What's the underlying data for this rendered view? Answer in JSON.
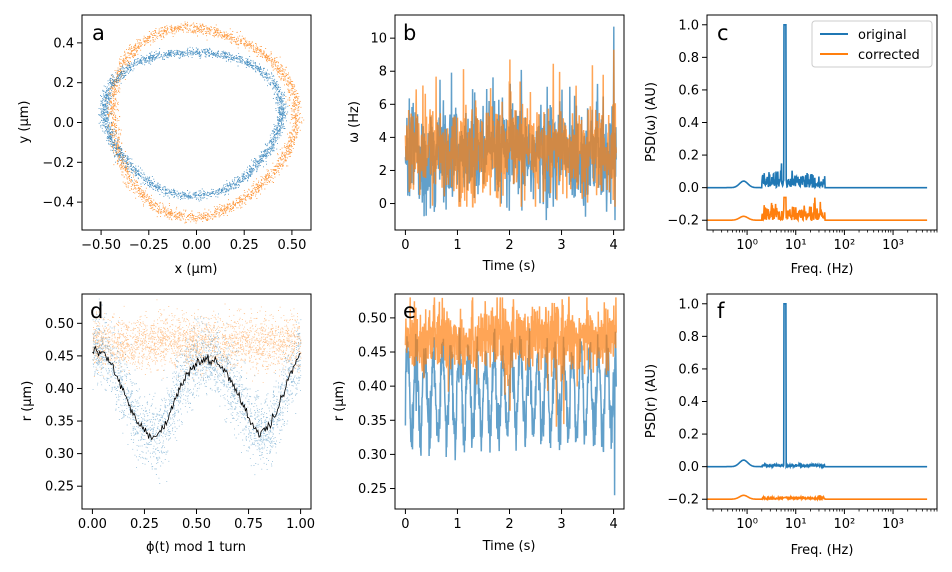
{
  "colors": {
    "original": "#1f77b4",
    "corrected": "#ff7f0e"
  },
  "chart_data": [
    {
      "panel": "a",
      "type": "scatter",
      "xlabel": "x (μm)",
      "ylabel": "y (μm)",
      "xlim": [
        -0.6,
        0.6
      ],
      "ylim": [
        -0.54,
        0.54
      ],
      "xticks": [
        -0.5,
        -0.25,
        0.0,
        0.25,
        0.5
      ],
      "xticklabels": [
        "−0.50",
        "−0.25",
        "0.00",
        "0.25",
        "0.50"
      ],
      "yticks": [
        -0.4,
        -0.2,
        0.0,
        0.2,
        0.4
      ],
      "yticklabels": [
        "−0.4",
        "−0.2",
        "0.0",
        "0.2",
        "0.4"
      ],
      "series": [
        {
          "color": "#1f77b4",
          "kind": "ellipse",
          "cx": -0.02,
          "cy": 0.01,
          "rx": 0.46,
          "ry": 0.36,
          "tilt": 0,
          "approx_points": true
        },
        {
          "color": "#ff7f0e",
          "kind": "ellipse",
          "cx": 0.02,
          "cy": 0.01,
          "rx": 0.48,
          "ry": 0.47,
          "tilt": 0,
          "approx_points": true
        }
      ]
    },
    {
      "panel": "b",
      "type": "line",
      "xlabel": "Time (s)",
      "ylabel": "ω (Hz)",
      "xlim": [
        -0.2,
        4.2
      ],
      "ylim": [
        -1.6,
        11.4
      ],
      "xticks": [
        0,
        1,
        2,
        3,
        4
      ],
      "xticklabels": [
        "0",
        "1",
        "2",
        "3",
        "4"
      ],
      "yticks": [
        0,
        2,
        4,
        6,
        8,
        10
      ],
      "yticklabels": [
        "0",
        "2",
        "4",
        "6",
        "8",
        "10"
      ],
      "series": [
        {
          "color": "#1f77b4",
          "approx_points": true,
          "mean": 3.0,
          "spread": 1.8,
          "max": 10.7,
          "min": -1.0
        },
        {
          "color": "#ff7f0e",
          "approx_points": true,
          "mean": 3.2,
          "spread": 1.6,
          "max": 9.3,
          "min": -0.2
        }
      ]
    },
    {
      "panel": "c",
      "type": "line",
      "xscale": "log",
      "xlabel": "Freq. (Hz)",
      "ylabel": "PSD(ω)  (AU)",
      "xlim": [
        0.15,
        8000
      ],
      "ylim": [
        -0.26,
        1.06
      ],
      "xticks": [
        1,
        10,
        100,
        1000
      ],
      "xticklabels": [
        "10⁰",
        "10¹",
        "10²",
        "10³"
      ],
      "yticks": [
        -0.2,
        0.0,
        0.2,
        0.4,
        0.6,
        0.8,
        1.0
      ],
      "yticklabels": [
        "−0.2",
        "0.0",
        "0.2",
        "0.4",
        "0.6",
        "0.8",
        "1.0"
      ],
      "legend": {
        "placement": "top-right",
        "entries": [
          "original",
          "corrected"
        ]
      },
      "series": [
        {
          "name": "original",
          "color": "#1f77b4",
          "baseline": 0.0,
          "peak_freq": 6,
          "peak_value": 1.0
        },
        {
          "name": "corrected",
          "color": "#ff7f0e",
          "baseline": -0.2,
          "peak_freq": 6,
          "peak_value": -0.06
        }
      ]
    },
    {
      "panel": "d",
      "type": "scatter",
      "xlabel": "ϕ(t) mod 1 turn",
      "ylabel": "r (μm)",
      "xlim": [
        -0.05,
        1.05
      ],
      "ylim": [
        0.215,
        0.545
      ],
      "xticks": [
        0.0,
        0.25,
        0.5,
        0.75,
        1.0
      ],
      "xticklabels": [
        "0.00",
        "0.25",
        "0.50",
        "0.75",
        "1.00"
      ],
      "yticks": [
        0.25,
        0.3,
        0.35,
        0.4,
        0.45,
        0.5
      ],
      "yticklabels": [
        "0.25",
        "0.30",
        "0.35",
        "0.40",
        "0.45",
        "0.50"
      ],
      "mean_curve": {
        "color": "#000000",
        "x": [
          0.0,
          0.05,
          0.1,
          0.15,
          0.2,
          0.25,
          0.3,
          0.35,
          0.4,
          0.45,
          0.5,
          0.55,
          0.6,
          0.65,
          0.7,
          0.75,
          0.8,
          0.85,
          0.9,
          0.95,
          1.0
        ],
        "y": [
          0.46,
          0.455,
          0.43,
          0.395,
          0.36,
          0.335,
          0.325,
          0.345,
          0.385,
          0.42,
          0.44,
          0.445,
          0.44,
          0.42,
          0.39,
          0.355,
          0.33,
          0.34,
          0.375,
          0.42,
          0.455
        ]
      },
      "series": [
        {
          "color": "#1f77b4",
          "approx_points": true,
          "follows": "mean_curve",
          "spread": 0.03
        },
        {
          "color": "#ff7f0e",
          "approx_points": true,
          "mean": 0.47,
          "spread": 0.02
        }
      ]
    },
    {
      "panel": "e",
      "type": "line",
      "xlabel": "Time (s)",
      "ylabel": "r (μm)",
      "xlim": [
        -0.2,
        4.2
      ],
      "ylim": [
        0.22,
        0.535
      ],
      "xticks": [
        0,
        1,
        2,
        3,
        4
      ],
      "xticklabels": [
        "0",
        "1",
        "2",
        "3",
        "4"
      ],
      "yticks": [
        0.25,
        0.3,
        0.35,
        0.4,
        0.45,
        0.5
      ],
      "yticklabels": [
        "0.25",
        "0.30",
        "0.35",
        "0.40",
        "0.45",
        "0.50"
      ],
      "series": [
        {
          "color": "#1f77b4",
          "approx_points": true,
          "mean": 0.39,
          "amplitude": 0.06,
          "osc_freq_hz": 6,
          "min": 0.24,
          "max": 0.5
        },
        {
          "color": "#ff7f0e",
          "approx_points": true,
          "mean": 0.47,
          "spread": 0.025,
          "min": 0.33,
          "max": 0.53
        }
      ]
    },
    {
      "panel": "f",
      "type": "line",
      "xscale": "log",
      "xlabel": "Freq. (Hz)",
      "ylabel": "PSD(r)  (AU)",
      "xlim": [
        0.15,
        8000
      ],
      "ylim": [
        -0.26,
        1.06
      ],
      "xticks": [
        1,
        10,
        100,
        1000
      ],
      "xticklabels": [
        "10⁰",
        "10¹",
        "10²",
        "10³"
      ],
      "yticks": [
        -0.2,
        0.0,
        0.2,
        0.4,
        0.6,
        0.8,
        1.0
      ],
      "yticklabels": [
        "−0.2",
        "0.0",
        "0.2",
        "0.4",
        "0.6",
        "0.8",
        "1.0"
      ],
      "series": [
        {
          "color": "#1f77b4",
          "baseline": 0.0,
          "peak_freq": 6,
          "peak_value": 1.0
        },
        {
          "color": "#ff7f0e",
          "baseline": -0.2,
          "peak_freq": 6,
          "peak_value": -0.19
        }
      ]
    }
  ]
}
